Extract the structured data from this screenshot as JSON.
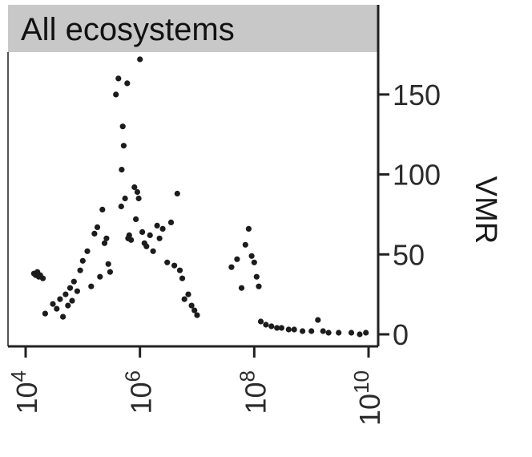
{
  "chart_data": {
    "type": "scatter",
    "title": "All ecosystems",
    "xlabel": "",
    "ylabel": "VMR",
    "x_scale": "log10",
    "xlim": [
      10000,
      10000000000
    ],
    "ylim": [
      0,
      175
    ],
    "x_ticks": [
      {
        "value": 10000,
        "base": "10",
        "exp": "4"
      },
      {
        "value": 1000000,
        "base": "10",
        "exp": "6"
      },
      {
        "value": 100000000,
        "base": "10",
        "exp": "8"
      },
      {
        "value": 10000000000,
        "base": "10",
        "exp": "10"
      }
    ],
    "y_ticks": [
      {
        "value": 0,
        "label": "0"
      },
      {
        "value": 50,
        "label": "50"
      },
      {
        "value": 100,
        "label": "100"
      },
      {
        "value": 150,
        "label": "150"
      }
    ],
    "grid": false,
    "legend": "none",
    "colors": {
      "points": "#1c1c1c",
      "title_band": "#c8c8c8",
      "axis": "#222222"
    },
    "points": [
      [
        14000,
        38
      ],
      [
        15000,
        37
      ],
      [
        16000,
        39
      ],
      [
        17000,
        36
      ],
      [
        18000,
        37
      ],
      [
        20000,
        35
      ],
      [
        22000,
        13
      ],
      [
        30000,
        19
      ],
      [
        35000,
        16
      ],
      [
        40000,
        22
      ],
      [
        45000,
        11
      ],
      [
        50000,
        25
      ],
      [
        55000,
        18
      ],
      [
        60000,
        29
      ],
      [
        65000,
        21
      ],
      [
        70000,
        33
      ],
      [
        80000,
        27
      ],
      [
        90000,
        40
      ],
      [
        100000,
        46
      ],
      [
        120000,
        52
      ],
      [
        140000,
        30
      ],
      [
        160000,
        63
      ],
      [
        180000,
        67
      ],
      [
        200000,
        36
      ],
      [
        220000,
        78
      ],
      [
        240000,
        57
      ],
      [
        260000,
        60
      ],
      [
        280000,
        44
      ],
      [
        300000,
        39
      ],
      [
        380000,
        150
      ],
      [
        420000,
        160
      ],
      [
        470000,
        80
      ],
      [
        480000,
        103
      ],
      [
        500000,
        130
      ],
      [
        520000,
        118
      ],
      [
        550000,
        85
      ],
      [
        600000,
        157
      ],
      [
        620000,
        60
      ],
      [
        650000,
        62
      ],
      [
        700000,
        59
      ],
      [
        800000,
        92
      ],
      [
        850000,
        72
      ],
      [
        900000,
        89
      ],
      [
        950000,
        85
      ],
      [
        1000000,
        172
      ],
      [
        1100000,
        64
      ],
      [
        1200000,
        57
      ],
      [
        1300000,
        55
      ],
      [
        1500000,
        62
      ],
      [
        1700000,
        52
      ],
      [
        2000000,
        68
      ],
      [
        2200000,
        60
      ],
      [
        2500000,
        66
      ],
      [
        3000000,
        45
      ],
      [
        3500000,
        70
      ],
      [
        4000000,
        43
      ],
      [
        4500000,
        88
      ],
      [
        5000000,
        40
      ],
      [
        5500000,
        35
      ],
      [
        6000000,
        22
      ],
      [
        7000000,
        25
      ],
      [
        8000000,
        18
      ],
      [
        9000000,
        15
      ],
      [
        10000000,
        12
      ],
      [
        40000000,
        42
      ],
      [
        50000000,
        47
      ],
      [
        60000000,
        29
      ],
      [
        70000000,
        56
      ],
      [
        80000000,
        66
      ],
      [
        90000000,
        49
      ],
      [
        100000000,
        45
      ],
      [
        110000000,
        36
      ],
      [
        120000000,
        30
      ],
      [
        130000000,
        8
      ],
      [
        160000000,
        6
      ],
      [
        200000000,
        5
      ],
      [
        250000000,
        4
      ],
      [
        300000000,
        4
      ],
      [
        400000000,
        3
      ],
      [
        500000000,
        3
      ],
      [
        700000000,
        2
      ],
      [
        1000000000,
        2
      ],
      [
        1300000000,
        9
      ],
      [
        1600000000,
        2
      ],
      [
        2000000000,
        1
      ],
      [
        3000000000,
        1
      ],
      [
        5000000000,
        1
      ],
      [
        7000000000,
        0
      ],
      [
        9000000000,
        1
      ]
    ]
  }
}
